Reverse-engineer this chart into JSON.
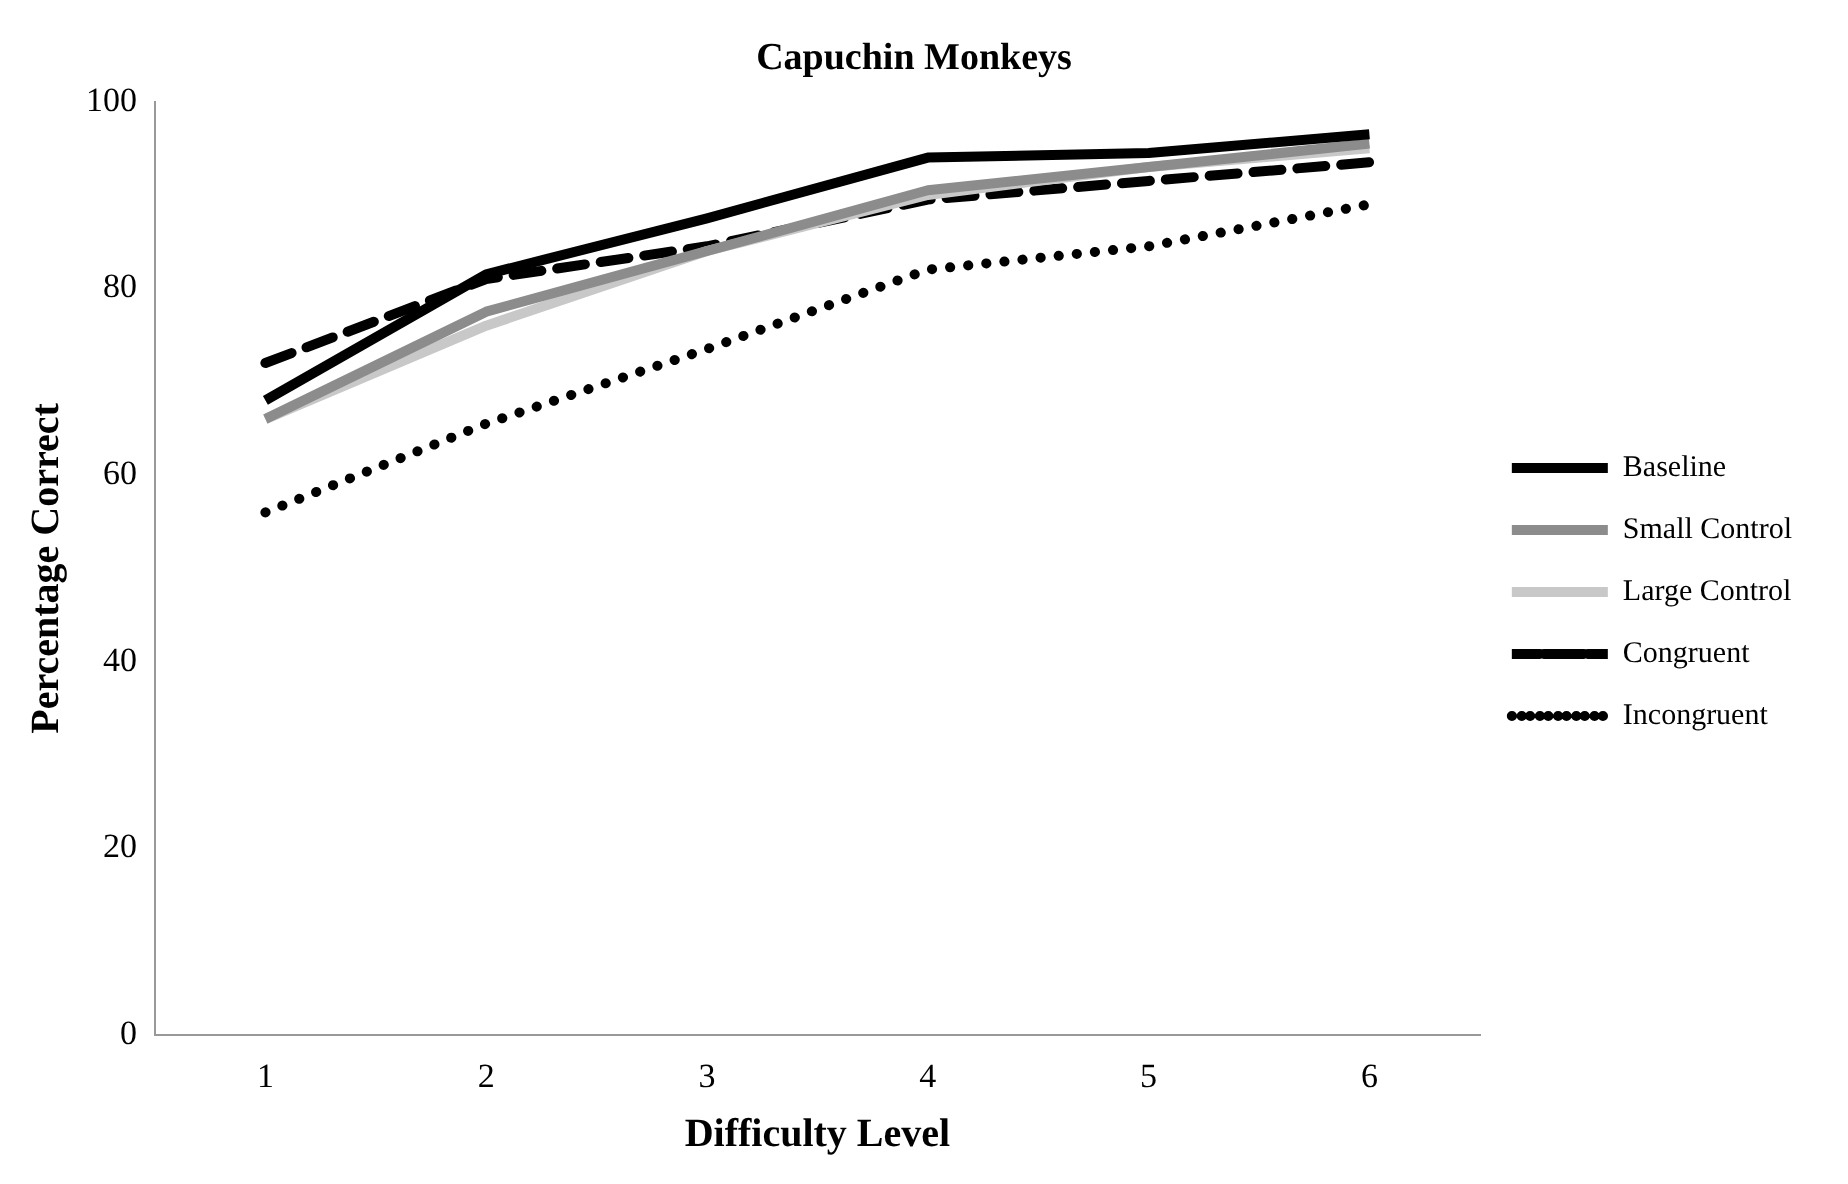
{
  "chart_data": {
    "type": "line",
    "title": "Capuchin Monkeys",
    "xlabel": "Difficulty Level",
    "ylabel": "Percentage Correct",
    "categories": [
      "1",
      "2",
      "3",
      "4",
      "5",
      "6"
    ],
    "series": [
      {
        "name": "Baseline",
        "color": "#000000",
        "line_style": "solid",
        "values": [
          68,
          81.5,
          87.5,
          94,
          94.5,
          96.5
        ]
      },
      {
        "name": "Small Control",
        "color": "#8c8c8c",
        "line_style": "solid",
        "values": [
          66,
          77.5,
          84,
          90.5,
          93,
          95.5
        ]
      },
      {
        "name": "Large Control",
        "color": "#c8c8c8",
        "line_style": "solid",
        "values": [
          66,
          76,
          84,
          90,
          93,
          95
        ]
      },
      {
        "name": "Congruent",
        "color": "#000000",
        "line_style": "dashed",
        "values": [
          72,
          81,
          84.5,
          89.5,
          91.5,
          93.5
        ]
      },
      {
        "name": "Incongruent",
        "color": "#000000",
        "line_style": "dotted",
        "values": [
          56,
          65.5,
          73.5,
          82,
          84.5,
          89
        ]
      }
    ],
    "ylim": [
      0,
      100
    ],
    "yticks": [
      0,
      20,
      40,
      60,
      80,
      100
    ],
    "grid": false,
    "legend": "right",
    "marker": "none"
  }
}
